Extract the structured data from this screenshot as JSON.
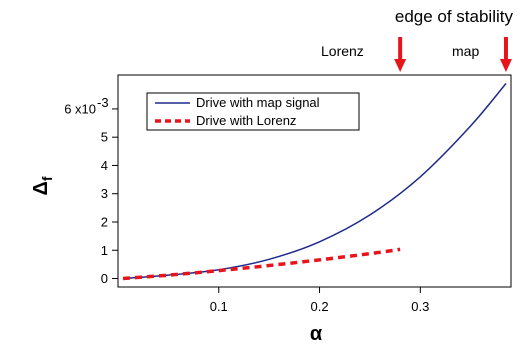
{
  "chart_data": {
    "type": "line",
    "title": "",
    "xlabel": "α",
    "ylabel": "Δ",
    "ylabel_sub": "f",
    "xlim": [
      0,
      0.39
    ],
    "ylim": [
      -0.0003,
      0.0072
    ],
    "x_ticks": [
      0.1,
      0.2,
      0.3
    ],
    "x_tick_labels": [
      "0.1",
      "0.2",
      "0.3"
    ],
    "y_ticks": [
      0,
      0.001,
      0.002,
      0.003,
      0.004,
      0.005,
      0.006
    ],
    "y_tick_labels": [
      "0",
      "1",
      "2",
      "3",
      "4",
      "5",
      "6 x10"
    ],
    "y_multiplier_exp": "-3",
    "grid": false,
    "legend_position": "top-left",
    "series": [
      {
        "name": "Drive with map signal",
        "color": "#1f2a8c",
        "style": "solid",
        "x": [
          0.005,
          0.05,
          0.1,
          0.15,
          0.2,
          0.25,
          0.3,
          0.35,
          0.385
        ],
        "y": [
          0.0,
          0.00012,
          0.00031,
          0.00068,
          0.0013,
          0.00225,
          0.0036,
          0.0054,
          0.0069
        ]
      },
      {
        "name": "Drive with Lorenz",
        "color": "#e8141c",
        "style": "dashed",
        "x": [
          0.005,
          0.05,
          0.1,
          0.15,
          0.2,
          0.25,
          0.28
        ],
        "y": [
          0.0,
          0.00012,
          0.00028,
          0.00046,
          0.00066,
          0.00088,
          0.00103
        ]
      }
    ],
    "annotations": [
      {
        "text": "edge of stability",
        "arrow_x": null
      },
      {
        "text": "Lorenz",
        "arrow_x": 0.28
      },
      {
        "text": "map",
        "arrow_x": 0.385
      }
    ]
  }
}
